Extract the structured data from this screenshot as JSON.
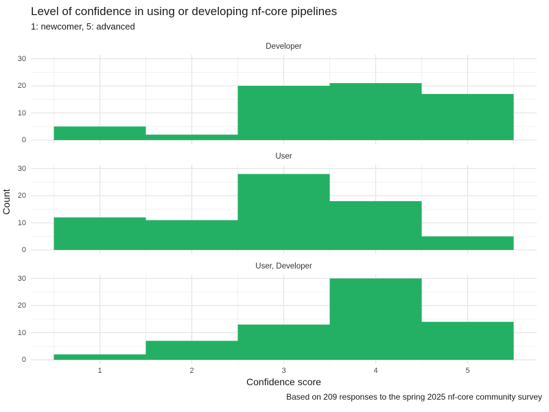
{
  "header": {
    "title": "Level of confidence in using or developing nf-core pipelines",
    "subtitle": "1: newcomer, 5: advanced"
  },
  "footer": {
    "caption": "Based on 209 responses to the spring 2025 nf-core community survey"
  },
  "chart_data": {
    "type": "bar",
    "subtype": "faceted-histogram",
    "title": "Level of confidence in using or developing nf-core pipelines",
    "subtitle": "1: newcomer, 5: advanced",
    "caption": "Based on 209 responses to the spring 2025 nf-core community survey",
    "xlabel": "Confidence score",
    "ylabel": "Count",
    "categories": [
      1,
      2,
      3,
      4,
      5
    ],
    "series": [
      {
        "name": "Developer",
        "values": [
          5,
          2,
          20,
          21,
          17
        ]
      },
      {
        "name": "User",
        "values": [
          12,
          11,
          28,
          18,
          5
        ]
      },
      {
        "name": "User, Developer",
        "values": [
          2,
          7,
          13,
          30,
          14
        ]
      }
    ],
    "x_ticks": [
      "1",
      "2",
      "3",
      "4",
      "5"
    ],
    "y_ticks": [
      0,
      10,
      20,
      30
    ],
    "y_minor_ticks": [
      5,
      15,
      25
    ],
    "xlim": [
      0.5,
      5.5
    ],
    "ylim": [
      0,
      30
    ],
    "bin_width": 1,
    "grid": "on",
    "legend_position": "none",
    "bar_color": "#24b064",
    "grid_major_color": "#e4e4e4",
    "grid_minor_color": "#f1f1f1",
    "axis_text_color": "#4d4d4d"
  }
}
